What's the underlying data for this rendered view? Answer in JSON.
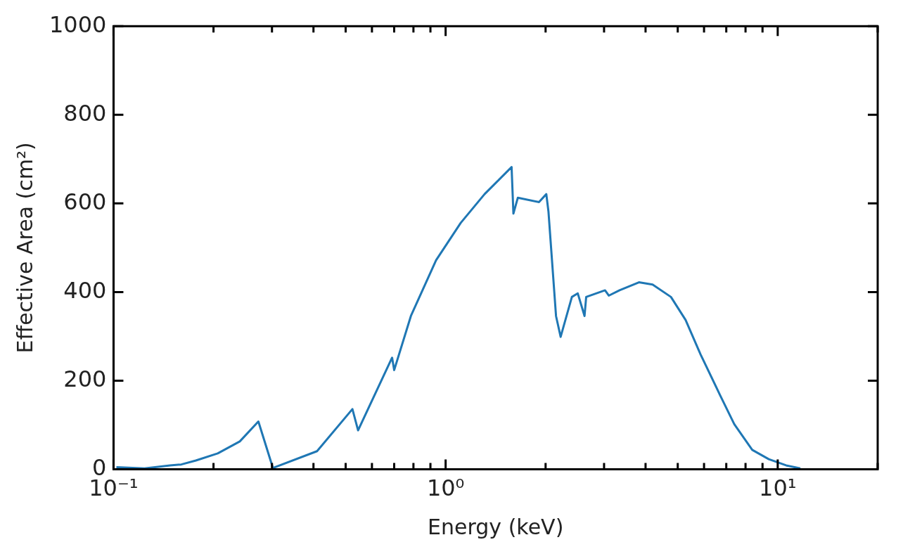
{
  "chart_data": {
    "type": "line",
    "xlabel": "Energy (keV)",
    "ylabel": "Effective Area (cm²)",
    "log": "x",
    "xlim": [
      0.1,
      20
    ],
    "xticks": [
      {
        "value": 0.1,
        "label": "10⁻¹"
      },
      {
        "value": 0.2,
        "label": null
      },
      {
        "value": 0.3,
        "label": null
      },
      {
        "value": 0.4,
        "label": null
      },
      {
        "value": 0.5,
        "label": null
      },
      {
        "value": 0.6,
        "label": null
      },
      {
        "value": 0.7,
        "label": null
      },
      {
        "value": 0.8,
        "label": null
      },
      {
        "value": 0.9,
        "label": null
      },
      {
        "value": 1,
        "label": "10⁰"
      },
      {
        "value": 2,
        "label": null
      },
      {
        "value": 3,
        "label": null
      },
      {
        "value": 4,
        "label": null
      },
      {
        "value": 5,
        "label": null
      },
      {
        "value": 6,
        "label": null
      },
      {
        "value": 7,
        "label": null
      },
      {
        "value": 8,
        "label": null
      },
      {
        "value": 9,
        "label": null
      },
      {
        "value": 10,
        "label": "10¹"
      },
      {
        "value": 20,
        "label": null
      }
    ],
    "ylim": [
      0,
      1000
    ],
    "yticks": [
      0,
      200,
      400,
      600,
      800,
      1000
    ],
    "grid": false,
    "legend": false,
    "marker": "none",
    "line_style": "solid",
    "series": [
      {
        "color": "#1f77b4",
        "x": [
          0.102,
          0.124,
          0.148,
          0.16,
          0.177,
          0.206,
          0.24,
          0.273,
          0.302,
          0.41,
          0.524,
          0.545,
          0.69,
          0.7,
          0.786,
          0.936,
          1.11,
          1.31,
          1.58,
          1.6,
          1.65,
          1.91,
          2.01,
          2.04,
          2.15,
          2.22,
          2.4,
          2.5,
          2.62,
          2.65,
          3.02,
          3.1,
          3.34,
          3.82,
          4.2,
          4.77,
          5.28,
          5.86,
          6.69,
          7.4,
          8.38,
          9.4,
          10.6,
          11.7
        ],
        "values": [
          5,
          2,
          9,
          11,
          20,
          36,
          63,
          108,
          3,
          41,
          136,
          88,
          252,
          224,
          346,
          472,
          556,
          621,
          682,
          577,
          613,
          603,
          621,
          582,
          346,
          299,
          389,
          397,
          346,
          389,
          404,
          392,
          404,
          422,
          417,
          389,
          337,
          259,
          169,
          102,
          44,
          23,
          9,
          2
        ]
      }
    ]
  }
}
